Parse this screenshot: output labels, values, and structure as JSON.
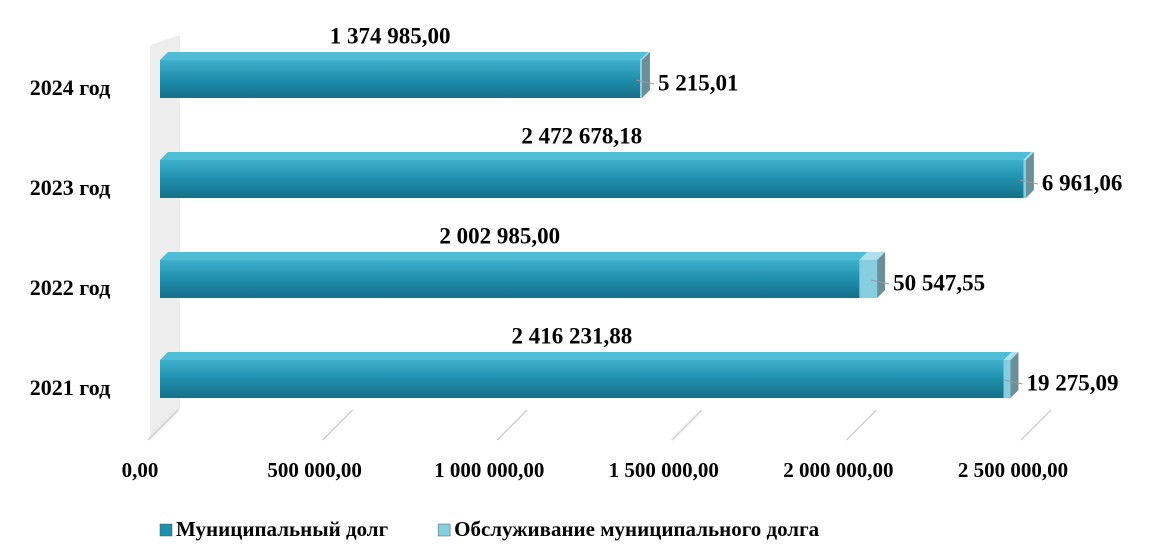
{
  "chart_data": {
    "type": "bar",
    "orientation": "horizontal",
    "stacked": true,
    "categories": [
      "2021 год",
      "2022 год",
      "2023 год",
      "2024 год"
    ],
    "series": [
      {
        "name": "Муниципальный долг",
        "color": "#1f8fae",
        "values": [
          2416231.88,
          2002985.0,
          2472678.18,
          1374985.0
        ],
        "value_labels": [
          "2 416 231,88",
          "2 002 985,00",
          "2 472 678,18",
          "1 374 985,00"
        ]
      },
      {
        "name": "Обслуживание муниципального долга",
        "color": "#86cde0",
        "values": [
          19275.09,
          50547.55,
          6961.06,
          5215.01
        ],
        "value_labels": [
          "19 275,09",
          "50 547,55",
          "6 961,06",
          "5 215,01"
        ]
      }
    ],
    "xlim": [
      0,
      2500000
    ],
    "xticks": [
      {
        "value": 0,
        "label": "0,00"
      },
      {
        "value": 500000,
        "label": "500 000,00"
      },
      {
        "value": 1000000,
        "label": "1 000 000,00"
      },
      {
        "value": 1500000,
        "label": "1 500 000,00"
      },
      {
        "value": 2000000,
        "label": "2 000 000,00"
      },
      {
        "value": 2500000,
        "label": "2 500 000,00"
      }
    ],
    "legend": "bottom"
  }
}
